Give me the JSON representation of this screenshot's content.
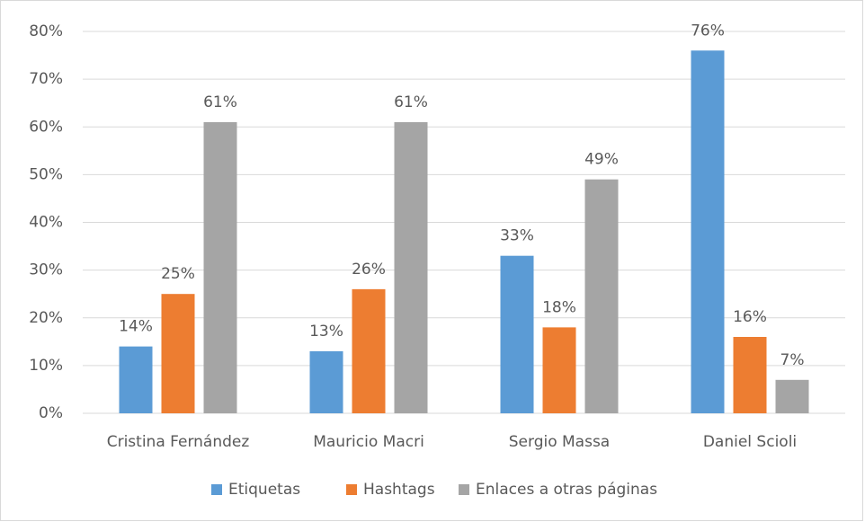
{
  "chart_data": {
    "type": "bar",
    "categories": [
      "Cristina Fernández",
      "Mauricio Macri",
      "Sergio Massa",
      "Daniel Scioli"
    ],
    "series": [
      {
        "name": "Etiquetas",
        "color": "#5b9bd5",
        "values": [
          14,
          13,
          33,
          76
        ],
        "value_labels": [
          "14%",
          "13%",
          "33%",
          "76%"
        ]
      },
      {
        "name": "Hashtags",
        "color": "#ed7d31",
        "values": [
          25,
          26,
          18,
          16
        ],
        "value_labels": [
          "25%",
          "26%",
          "18%",
          "16%"
        ]
      },
      {
        "name": "Enlaces a otras páginas",
        "color": "#a5a5a5",
        "values": [
          61,
          61,
          49,
          7
        ],
        "value_labels": [
          "61%",
          "61%",
          "49%",
          "7%"
        ]
      }
    ],
    "ylim": [
      0,
      80
    ],
    "yticks": [
      {
        "value": 0,
        "label": "0%"
      },
      {
        "value": 10,
        "label": "10%"
      },
      {
        "value": 20,
        "label": "20%"
      },
      {
        "value": 30,
        "label": "30%"
      },
      {
        "value": 40,
        "label": "40%"
      },
      {
        "value": 50,
        "label": "50%"
      },
      {
        "value": 60,
        "label": "60%"
      },
      {
        "value": 70,
        "label": "70%"
      },
      {
        "value": 80,
        "label": "80%"
      }
    ],
    "grid": true,
    "legend": "bottom"
  }
}
